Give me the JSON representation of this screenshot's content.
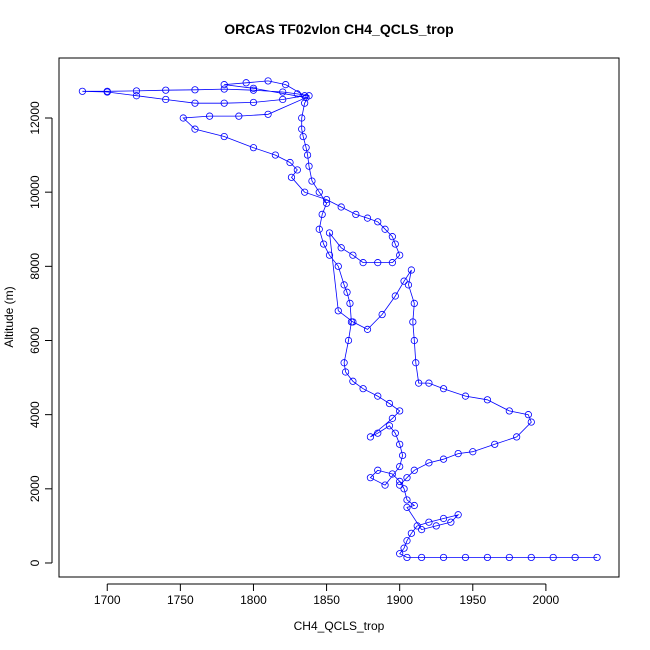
{
  "chart_data": {
    "type": "line",
    "marker": "circle-open",
    "title": "ORCAS TF02vlon CH4_QCLS_trop",
    "xlabel": "CH4_QCLS_trop",
    "ylabel": "Altitude (m)",
    "color": "#0000ff",
    "xlim": [
      1667,
      2050
    ],
    "ylim": [
      -378,
      13618
    ],
    "xticks": [
      1700,
      1750,
      1800,
      1850,
      1900,
      1950,
      2000
    ],
    "yticks": [
      0,
      2000,
      4000,
      6000,
      8000,
      10000,
      12000
    ],
    "x": [
      2035,
      2020,
      2005,
      1990,
      1975,
      1960,
      1945,
      1930,
      1915,
      1905,
      1900,
      1903,
      1905,
      1908,
      1912,
      1920,
      1930,
      1940,
      1935,
      1925,
      1915,
      1905,
      1910,
      1905,
      1903,
      1900,
      1895,
      1885,
      1880,
      1890,
      1900,
      1902,
      1900,
      1897,
      1893,
      1885,
      1880,
      1895,
      1900,
      1893,
      1885,
      1875,
      1868,
      1863,
      1862,
      1865,
      1867,
      1866,
      1864,
      1862,
      1858,
      1852,
      1848,
      1845,
      1847,
      1850,
      1845,
      1840,
      1838,
      1837,
      1836,
      1834,
      1833,
      1833,
      1835,
      1838,
      1830,
      1820,
      1800,
      1780,
      1760,
      1740,
      1720,
      1700,
      1683,
      1700,
      1720,
      1740,
      1760,
      1780,
      1800,
      1820,
      1835,
      1822,
      1810,
      1795,
      1780,
      1800,
      1836,
      1810,
      1790,
      1770,
      1752,
      1760,
      1780,
      1800,
      1815,
      1825,
      1830,
      1826,
      1835,
      1850,
      1860,
      1870,
      1878,
      1885,
      1890,
      1895,
      1897,
      1900,
      1895,
      1885,
      1875,
      1868,
      1860,
      1852,
      1858,
      1868,
      1878,
      1888,
      1897,
      1903,
      1908,
      1906,
      1910,
      1909,
      1910,
      1911,
      1913,
      1920,
      1930,
      1945,
      1960,
      1975,
      1988,
      1990,
      1980,
      1965,
      1950,
      1940,
      1930,
      1920,
      1910,
      1905,
      1900
    ],
    "values": [
      150,
      150,
      150,
      150,
      150,
      150,
      150,
      150,
      150,
      150,
      250,
      400,
      600,
      800,
      1000,
      1100,
      1200,
      1300,
      1100,
      1000,
      900,
      1500,
      1550,
      1700,
      2000,
      2200,
      2400,
      2500,
      2300,
      2100,
      2600,
      2900,
      3200,
      3500,
      3700,
      3500,
      3400,
      3900,
      4100,
      4300,
      4500,
      4700,
      4900,
      5150,
      5400,
      6000,
      6500,
      7000,
      7300,
      7500,
      8000,
      8300,
      8600,
      9000,
      9400,
      9700,
      10000,
      10300,
      10700,
      11000,
      11200,
      11500,
      11700,
      12000,
      12400,
      12600,
      12650,
      12700,
      12750,
      12780,
      12760,
      12750,
      12730,
      12720,
      12720,
      12700,
      12600,
      12500,
      12400,
      12400,
      12420,
      12500,
      12600,
      12900,
      13000,
      12950,
      12900,
      12800,
      12550,
      12100,
      12050,
      12050,
      12000,
      11700,
      11500,
      11200,
      11000,
      10800,
      10600,
      10400,
      10000,
      9800,
      9600,
      9400,
      9300,
      9200,
      9000,
      8800,
      8600,
      8300,
      8100,
      8100,
      8100,
      8300,
      8500,
      8900,
      6800,
      6500,
      6300,
      6700,
      7200,
      7600,
      7900,
      7500,
      7000,
      6500,
      6000,
      5400,
      4850,
      4850,
      4700,
      4500,
      4400,
      4100,
      4000,
      3800,
      3400,
      3200,
      3000,
      2950,
      2800,
      2700,
      2500,
      2300,
      2100
    ]
  }
}
